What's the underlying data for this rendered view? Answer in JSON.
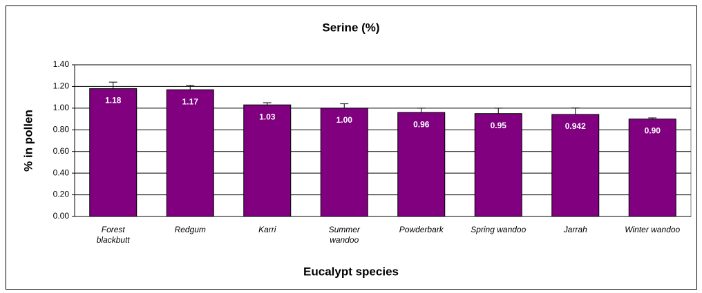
{
  "chart_data": {
    "type": "bar",
    "title": "Serine (%)",
    "x_label": "Eucalypt species",
    "y_label": "% in pollen",
    "categories": [
      "Forest blackbutt",
      "Redgum",
      "Karri",
      "Summer wandoo",
      "Powderbark",
      "Spring wandoo",
      "Jarrah",
      "Winter wandoo"
    ],
    "values": [
      1.18,
      1.17,
      1.03,
      1.0,
      0.96,
      0.95,
      0.942,
      0.9
    ],
    "value_labels": [
      "1.18",
      "1.17",
      "1.03",
      "1.00",
      "0.96",
      "0.95",
      "0.942",
      "0.90"
    ],
    "errors": [
      0.06,
      0.04,
      0.02,
      0.04,
      0.04,
      0.05,
      0.06,
      0.01
    ],
    "color": "#800080",
    "ylim": [
      0,
      1.4
    ],
    "yticks": [
      {
        "value": 0,
        "label": "0.00"
      },
      {
        "value": 0.2,
        "label": "0.20"
      },
      {
        "value": 0.4,
        "label": "0.40"
      },
      {
        "value": 0.6,
        "label": "0.60"
      },
      {
        "value": 0.8,
        "label": "0.80"
      },
      {
        "value": 1.0,
        "label": "1.00"
      },
      {
        "value": 1.2,
        "label": "1.20"
      },
      {
        "value": 1.4,
        "label": "1.40"
      }
    ],
    "grid": true
  }
}
